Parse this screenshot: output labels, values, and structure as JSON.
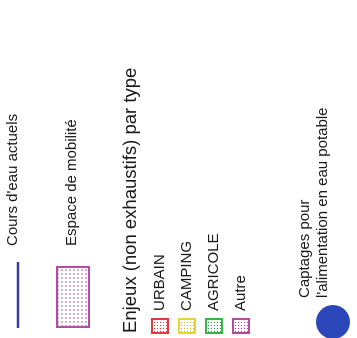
{
  "legend": {
    "watercourse": {
      "label": "Cours d'eau actuels",
      "color": "#3a3fa8"
    },
    "mobility": {
      "label": "Espace de mobilité",
      "color": "#b84aa6"
    },
    "stakes_title": "Enjeux (non exhaustifs) par type",
    "stakes": [
      {
        "label": "URBAIN",
        "color": "#e23b3b"
      },
      {
        "label": "CAMPING",
        "color": "#e6d82a"
      },
      {
        "label": "AGRICOLE",
        "color": "#39b54a"
      },
      {
        "label": "Autre",
        "color": "#b84aa6"
      }
    ],
    "capture": {
      "line1": "Captages pour",
      "line2": "l'alimentation en eau potable",
      "color": "#2a46b8"
    }
  }
}
